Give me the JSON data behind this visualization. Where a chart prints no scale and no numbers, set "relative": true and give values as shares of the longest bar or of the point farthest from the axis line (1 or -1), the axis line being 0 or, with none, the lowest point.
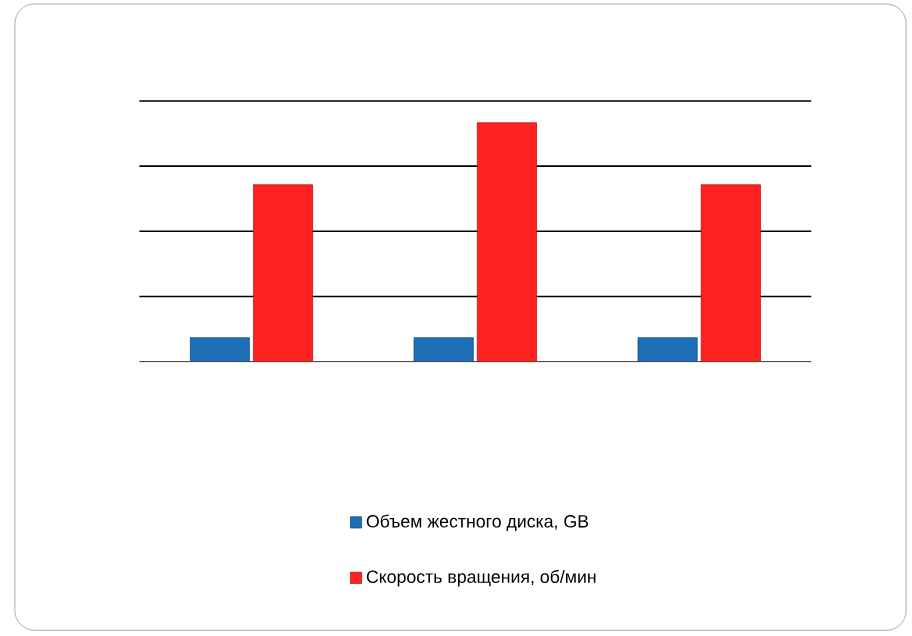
{
  "chart_data": {
    "type": "bar",
    "relative": true,
    "categories": [
      null,
      null,
      null
    ],
    "series": [
      {
        "name": "Объем жестного диска, GB",
        "color": "#1f6fb8",
        "values": [
          0.1,
          0.1,
          0.1
        ]
      },
      {
        "name": "Скорость вращения, об/мин",
        "color": "#ff2020",
        "values": [
          0.74,
          1,
          0.74
        ]
      }
    ],
    "grid": "y",
    "legend": "bottom"
  }
}
